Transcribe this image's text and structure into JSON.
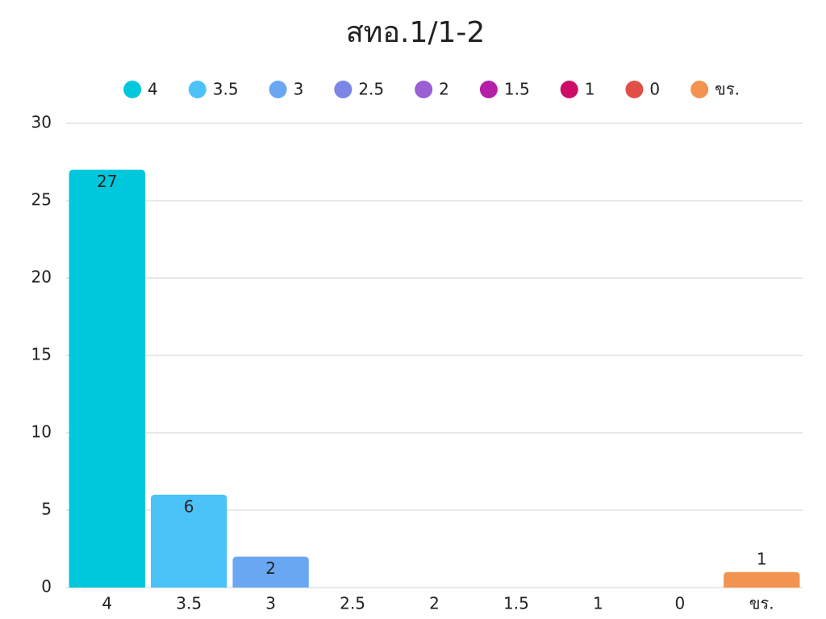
{
  "chart_data": {
    "type": "bar",
    "title": "สทอ.1/1-2",
    "categories": [
      "4",
      "3.5",
      "3",
      "2.5",
      "2",
      "1.5",
      "1",
      "0",
      "ขร."
    ],
    "values": [
      27,
      6,
      2,
      0,
      0,
      0,
      0,
      0,
      1
    ],
    "colors": [
      "#00c8dc",
      "#4bc3f8",
      "#6aa7f2",
      "#7b86e6",
      "#9a5fd4",
      "#b51fa8",
      "#cc0e66",
      "#e04f47",
      "#f29450"
    ],
    "ylim": [
      0,
      30
    ],
    "yticks": [
      0,
      5,
      10,
      15,
      20,
      25,
      30
    ],
    "grid": true,
    "legend": "top"
  }
}
